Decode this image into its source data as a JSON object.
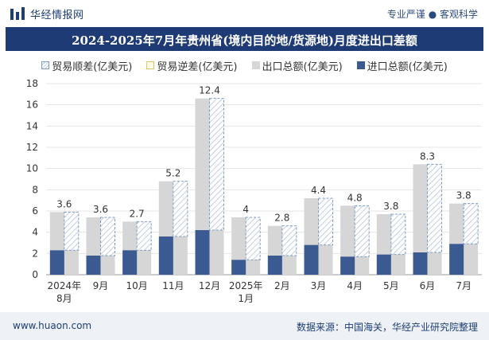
{
  "header": {
    "brand": "华经情报网",
    "tagline": "专业严谨 ● 客观科学"
  },
  "footer": {
    "site": "www.huaon.com",
    "source": "数据来源：中国海关，华经产业研究院整理"
  },
  "colors": {
    "title_bg": "#1f3b75",
    "export": "#d6d6d6",
    "import": "#3c5a92",
    "surplus_border": "#7f9bc2",
    "deficit_border": "#e0c46a"
  },
  "chart_data": {
    "type": "bar",
    "title": "2024-2025年7月年贵州省(境内目的地/货源地)月度进出口差额",
    "legend": [
      "贸易顺差(亿美元)",
      "贸易逆差(亿美元)",
      "出口总额(亿美元)",
      "进口总额(亿美元)"
    ],
    "legend_position": "top",
    "categories": [
      "2024年\n8月",
      "9月",
      "10月",
      "11月",
      "12月",
      "2025年\n1月",
      "2月",
      "3月",
      "4月",
      "5月",
      "6月",
      "7月"
    ],
    "series": [
      {
        "name": "出口总额(亿美元)",
        "values": [
          5.9,
          5.4,
          5.0,
          8.8,
          16.6,
          5.4,
          4.6,
          7.2,
          6.5,
          5.7,
          10.4,
          6.7
        ]
      },
      {
        "name": "进口总额(亿美元)",
        "values": [
          2.3,
          1.8,
          2.3,
          3.6,
          4.2,
          1.4,
          1.8,
          2.8,
          1.7,
          1.9,
          2.1,
          2.9
        ]
      },
      {
        "name": "贸易顺差(亿美元)",
        "values": [
          3.6,
          3.6,
          2.7,
          5.2,
          12.4,
          4,
          2.8,
          4.4,
          4.8,
          3.8,
          8.3,
          3.8
        ]
      },
      {
        "name": "贸易逆差(亿美元)",
        "values": [
          0,
          0,
          0,
          0,
          0,
          0,
          0,
          0,
          0,
          0,
          0,
          0
        ]
      }
    ],
    "data_labels": [
      "3.6",
      "3.6",
      "2.7",
      "5.2",
      "12.4",
      "4",
      "2.8",
      "4.4",
      "4.8",
      "3.8",
      "8.3",
      "3.8"
    ],
    "ylim": [
      0,
      18
    ],
    "yticks": [
      0,
      2,
      4,
      6,
      8,
      10,
      12,
      14,
      16,
      18
    ],
    "grid": true
  }
}
